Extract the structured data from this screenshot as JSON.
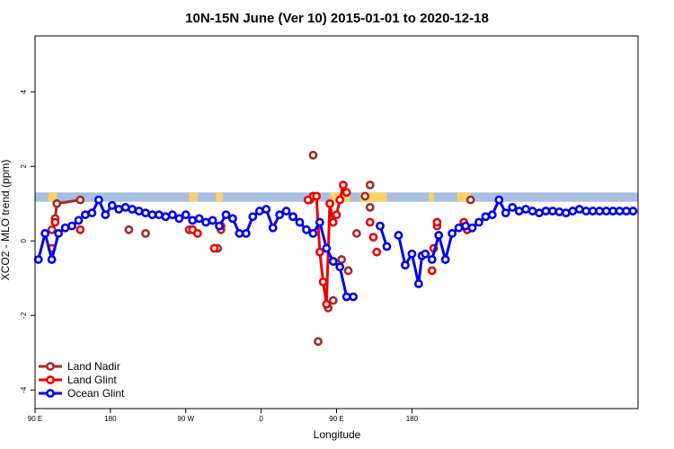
{
  "chart_data": {
    "type": "line",
    "title": "10N-15N June (Ver 10)   2015-01-01 to 2020-12-18",
    "xlabel": "Longitude",
    "ylabel": "XCO2 - MLO trend (ppm)",
    "xlim": [
      -180,
      180
    ],
    "ylim": [
      -4.5,
      5.5
    ],
    "x_ticks": [
      {
        "value": -180,
        "label": "90 E"
      },
      {
        "value": -135,
        "label": "180"
      },
      {
        "value": -90,
        "label": "90 W"
      },
      {
        "value": -45,
        "label": "0"
      },
      {
        "value": 0,
        "label": "90 E"
      },
      {
        "value": 45,
        "label": "180"
      }
    ],
    "y_ticks": [
      {
        "value": -4,
        "label": "-4"
      },
      {
        "value": -2,
        "label": "-2"
      },
      {
        "value": 0,
        "label": "0"
      },
      {
        "value": 2,
        "label": "2"
      },
      {
        "value": 4,
        "label": "4"
      }
    ],
    "grid": false,
    "legend_position": "bottom-left",
    "band": {
      "y_from": 1.05,
      "y_to": 1.3,
      "color": "#a9bfe0",
      "highlight_color": "#f5d36a"
    },
    "series": [
      {
        "name": "Land Nadir",
        "color": "#a52a2a",
        "x": [
          -170,
          -168,
          -167,
          -153
        ],
        "y": [
          0.3,
          0.6,
          1.0,
          1.1
        ],
        "points_only": {
          "x": [
            -124,
            -114,
            -88,
            -71,
            -69,
            -16,
            -14,
            -11,
            -5,
            -2,
            3,
            7,
            12,
            17,
            20,
            20,
            60,
            78,
            80
          ],
          "y": [
            0.3,
            0.2,
            0.3,
            -0.2,
            0.3,
            1.1,
            2.3,
            -2.7,
            -1.8,
            -1.6,
            -0.5,
            -0.8,
            0.2,
            1.2,
            1.5,
            0.9,
            0.4,
            0.3,
            1.1
          ]
        }
      },
      {
        "name": "Land Glint",
        "color": "#ee0000",
        "x": [
          -17,
          -14,
          -12,
          -10,
          -8,
          -6,
          -4,
          -2,
          0,
          2,
          4,
          6
        ],
        "y": [
          1.1,
          1.2,
          1.2,
          -0.3,
          -1.1,
          -1.7,
          1.0,
          0.5,
          0.7,
          1.1,
          1.5,
          1.3
        ],
        "points_only": {
          "x": [
            -170,
            -168,
            -153,
            -86,
            -83,
            -73,
            -69,
            20,
            22,
            24,
            57,
            58,
            60,
            76,
            78
          ],
          "y": [
            -0.2,
            0.5,
            0.3,
            0.3,
            0.2,
            -0.2,
            0.4,
            0.5,
            0.1,
            -0.3,
            -0.8,
            -0.2,
            0.5,
            0.5,
            0.3
          ]
        }
      },
      {
        "name": "Ocean Glint",
        "color": "#0000ee",
        "x": [
          -178,
          -174,
          -170,
          -166,
          -162,
          -158,
          -154,
          -150,
          -146,
          -142,
          -138,
          -134,
          -130,
          -126,
          -122,
          -118,
          -114,
          -110,
          -106,
          -102,
          -98,
          -94,
          -90,
          -86,
          -82,
          -78,
          -74,
          -70,
          -66,
          -62,
          -58,
          -54,
          -50,
          -46,
          -42,
          -38,
          -34,
          -30,
          -26
        ],
        "y": [
          -0.5,
          0.2,
          -0.5,
          0.2,
          0.35,
          0.4,
          0.55,
          0.7,
          0.75,
          1.1,
          0.7,
          0.95,
          0.85,
          0.9,
          0.85,
          0.8,
          0.75,
          0.7,
          0.7,
          0.65,
          0.7,
          0.6,
          0.7,
          0.55,
          0.6,
          0.5,
          0.55,
          0.4,
          0.7,
          0.6,
          0.2,
          0.2,
          0.65,
          0.8,
          0.85,
          0.35,
          0.7,
          0.8,
          0.65
        ],
        "extra_segments": [
          {
            "x": [
              -26,
              -22,
              -18,
              -14,
              -10,
              -6,
              -2
            ],
            "y": [
              0.65,
              0.5,
              0.3,
              0.2,
              0.5,
              -0.2,
              -0.55
            ]
          },
          {
            "x": [
              -2,
              2,
              6,
              10
            ],
            "y": [
              -0.55,
              -0.7,
              -1.5,
              -1.5
            ]
          },
          {
            "x": [
              26,
              30
            ],
            "y": [
              0.4,
              -0.15
            ]
          },
          {
            "x": [
              37,
              41,
              45,
              49,
              51,
              53,
              57,
              61,
              65,
              69,
              73,
              77,
              81,
              85,
              89,
              93,
              97,
              101,
              105,
              109,
              113,
              117,
              121,
              125,
              129,
              133,
              137,
              141,
              145,
              149,
              153,
              157,
              161,
              165,
              169,
              173,
              177
            ],
            "y": [
              0.15,
              -0.65,
              -0.35,
              -1.15,
              -0.4,
              -0.35,
              -0.5,
              0.15,
              -0.5,
              0.2,
              0.35,
              0.4,
              0.35,
              0.5,
              0.65,
              0.7,
              1.1,
              0.75,
              0.9,
              0.8,
              0.85,
              0.8,
              0.75,
              0.8,
              0.8,
              0.78,
              0.75,
              0.8,
              0.85,
              0.8,
              0.8,
              0.8,
              0.8,
              0.8,
              0.8,
              0.8,
              0.8
            ]
          }
        ]
      }
    ]
  }
}
